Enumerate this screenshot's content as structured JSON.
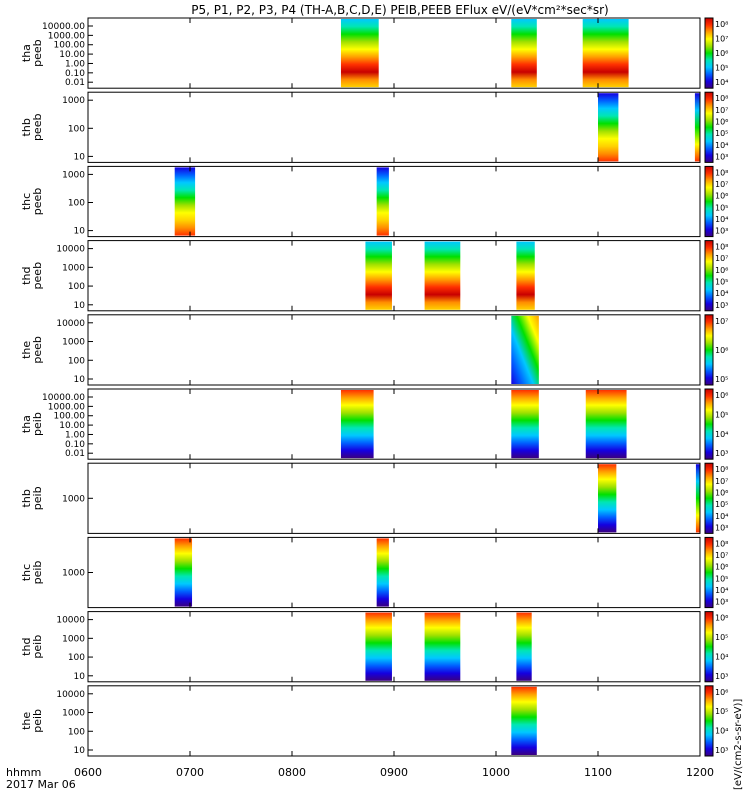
{
  "title": "P5, P1, P2, P3, P4 (TH-A,B,C,D,E) PEIB,PEEB EFlux eV/(eV*cm²*sec*sr)",
  "time_axis": {
    "unit_label": "hhmm",
    "date_label": "2017 Mar 06",
    "ticks": [
      "0600",
      "0700",
      "0800",
      "0900",
      "1000",
      "1100",
      "1200"
    ],
    "start_hour": 6,
    "end_hour": 12
  },
  "colorbar": {
    "label": "[eV/(cm2-s-sr-eV)]",
    "palette": [
      "#3b0080",
      "#1400e0",
      "#0060ff",
      "#00c8ff",
      "#00e6b4",
      "#00e000",
      "#a0e000",
      "#ffff00",
      "#ffa000",
      "#ff3000",
      "#c80000"
    ]
  },
  "chart_data": [
    {
      "type": "heatmap",
      "probe": "tha",
      "product": "peeb",
      "ylabel_line1": "tha",
      "ylabel_line2": "peeb",
      "y_ticks": [
        "10000.00",
        "1000.00",
        "100.00",
        "10.00",
        "1.00",
        "0.10",
        "0.01"
      ],
      "cbar_ticks": [
        "10⁸",
        "10⁷",
        "10⁶",
        "10⁵",
        "10⁴"
      ],
      "blocks": [
        {
          "t0": 8.48,
          "t1": 8.85,
          "style": "hot"
        },
        {
          "t0": 10.15,
          "t1": 10.4,
          "style": "hot"
        },
        {
          "t0": 10.85,
          "t1": 11.3,
          "style": "hot"
        }
      ]
    },
    {
      "type": "heatmap",
      "probe": "thb",
      "product": "peeb",
      "ylabel_line1": "thb",
      "ylabel_line2": "peeb",
      "y_ticks": [
        "1000",
        "100",
        "10"
      ],
      "cbar_ticks": [
        "10⁸",
        "10⁷",
        "10⁶",
        "10⁵",
        "10⁴",
        "10³"
      ],
      "blocks": [
        {
          "t0": 11.0,
          "t1": 11.2,
          "style": "cool"
        },
        {
          "t0": 11.95,
          "t1": 12.0,
          "style": "edge"
        }
      ]
    },
    {
      "type": "heatmap",
      "probe": "thc",
      "product": "peeb",
      "ylabel_line1": "thc",
      "ylabel_line2": "peeb",
      "y_ticks": [
        "1000",
        "100",
        "10"
      ],
      "cbar_ticks": [
        "10⁸",
        "10⁷",
        "10⁶",
        "10⁵",
        "10⁴",
        "10³"
      ],
      "blocks": [
        {
          "t0": 6.85,
          "t1": 7.05,
          "style": "cool"
        },
        {
          "t0": 8.83,
          "t1": 8.95,
          "style": "cool"
        }
      ]
    },
    {
      "type": "heatmap",
      "probe": "thd",
      "product": "peeb",
      "ylabel_line1": "thd",
      "ylabel_line2": "peeb",
      "y_ticks": [
        "10000",
        "1000",
        "100",
        "10"
      ],
      "cbar_ticks": [
        "10⁸",
        "10⁷",
        "10⁶",
        "10⁵",
        "10⁴",
        "10³"
      ],
      "blocks": [
        {
          "t0": 8.72,
          "t1": 8.98,
          "style": "hot"
        },
        {
          "t0": 9.3,
          "t1": 9.65,
          "style": "hot"
        },
        {
          "t0": 10.2,
          "t1": 10.38,
          "style": "hot"
        }
      ]
    },
    {
      "type": "heatmap",
      "probe": "the",
      "product": "peeb",
      "ylabel_line1": "the",
      "ylabel_line2": "peeb",
      "y_ticks": [
        "10000",
        "1000",
        "100",
        "10"
      ],
      "cbar_ticks": [
        "10⁷",
        "10⁶",
        "10⁵"
      ],
      "blocks": [
        {
          "t0": 10.15,
          "t1": 10.42,
          "style": "diag"
        }
      ]
    },
    {
      "type": "heatmap",
      "probe": "tha",
      "product": "peib",
      "ylabel_line1": "tha",
      "ylabel_line2": "peib",
      "y_ticks": [
        "10000.00",
        "1000.00",
        "100.00",
        "10.00",
        "1.00",
        "0.10",
        "0.01"
      ],
      "cbar_ticks": [
        "10⁶",
        "10⁵",
        "10⁴",
        "10³"
      ],
      "blocks": [
        {
          "t0": 8.48,
          "t1": 8.8,
          "style": "ion"
        },
        {
          "t0": 10.15,
          "t1": 10.42,
          "style": "ion"
        },
        {
          "t0": 10.88,
          "t1": 11.28,
          "style": "ion"
        }
      ]
    },
    {
      "type": "heatmap",
      "probe": "thb",
      "product": "peib",
      "ylabel_line1": "thb",
      "ylabel_line2": "peib",
      "y_ticks": [
        "1000"
      ],
      "cbar_ticks": [
        "10⁸",
        "10⁷",
        "10⁶",
        "10⁵",
        "10⁴",
        "10³"
      ],
      "blocks": [
        {
          "t0": 11.0,
          "t1": 11.18,
          "style": "ion"
        },
        {
          "t0": 11.96,
          "t1": 12.0,
          "style": "edge"
        }
      ]
    },
    {
      "type": "heatmap",
      "probe": "thc",
      "product": "peib",
      "ylabel_line1": "thc",
      "ylabel_line2": "peib",
      "y_ticks": [
        "1000"
      ],
      "cbar_ticks": [
        "10⁸",
        "10⁷",
        "10⁶",
        "10⁵",
        "10⁴",
        "10³"
      ],
      "blocks": [
        {
          "t0": 6.85,
          "t1": 7.02,
          "style": "ion"
        },
        {
          "t0": 8.83,
          "t1": 8.95,
          "style": "ion"
        }
      ]
    },
    {
      "type": "heatmap",
      "probe": "thd",
      "product": "peib",
      "ylabel_line1": "thd",
      "ylabel_line2": "peib",
      "y_ticks": [
        "10000",
        "1000",
        "100",
        "10"
      ],
      "cbar_ticks": [
        "10⁶",
        "10⁵",
        "10⁴",
        "10³"
      ],
      "blocks": [
        {
          "t0": 8.72,
          "t1": 8.98,
          "style": "ion"
        },
        {
          "t0": 9.3,
          "t1": 9.65,
          "style": "ion"
        },
        {
          "t0": 10.2,
          "t1": 10.35,
          "style": "ion"
        }
      ]
    },
    {
      "type": "heatmap",
      "probe": "the",
      "product": "peib",
      "ylabel_line1": "the",
      "ylabel_line2": "peib",
      "y_ticks": [
        "10000",
        "1000",
        "100",
        "10"
      ],
      "cbar_ticks": [
        "10⁶",
        "10⁵",
        "10⁴",
        "10³"
      ],
      "blocks": [
        {
          "t0": 10.15,
          "t1": 10.4,
          "style": "ion"
        }
      ]
    }
  ]
}
